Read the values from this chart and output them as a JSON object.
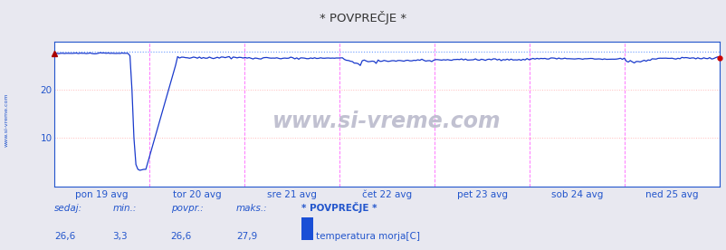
{
  "title": "* POVPREČJE *",
  "bg_color": "#e8e8f0",
  "plot_bg_color": "#ffffff",
  "line_color": "#1a3acc",
  "max_line_color": "#6699ff",
  "x_labels": [
    "pon 19 avg",
    "tor 20 avg",
    "sre 21 avg",
    "čet 22 avg",
    "pet 23 avg",
    "sob 24 avg",
    "ned 25 avg"
  ],
  "ylim": [
    0,
    30
  ],
  "grid_h_color": "#ffbbbb",
  "grid_v_color": "#ff77ff",
  "watermark": "www.si-vreme.com",
  "sedaj": "26,6",
  "min_val": "3,3",
  "povpr": "26,6",
  "maks": "27,9",
  "legend_name": "* POVPREČJE *",
  "legend_sensor": "temperatura morja[C]",
  "legend_color": "#1a4fd6",
  "text_color": "#2255cc",
  "n_points": 336,
  "max_value": 27.9,
  "base_value": 26.8
}
